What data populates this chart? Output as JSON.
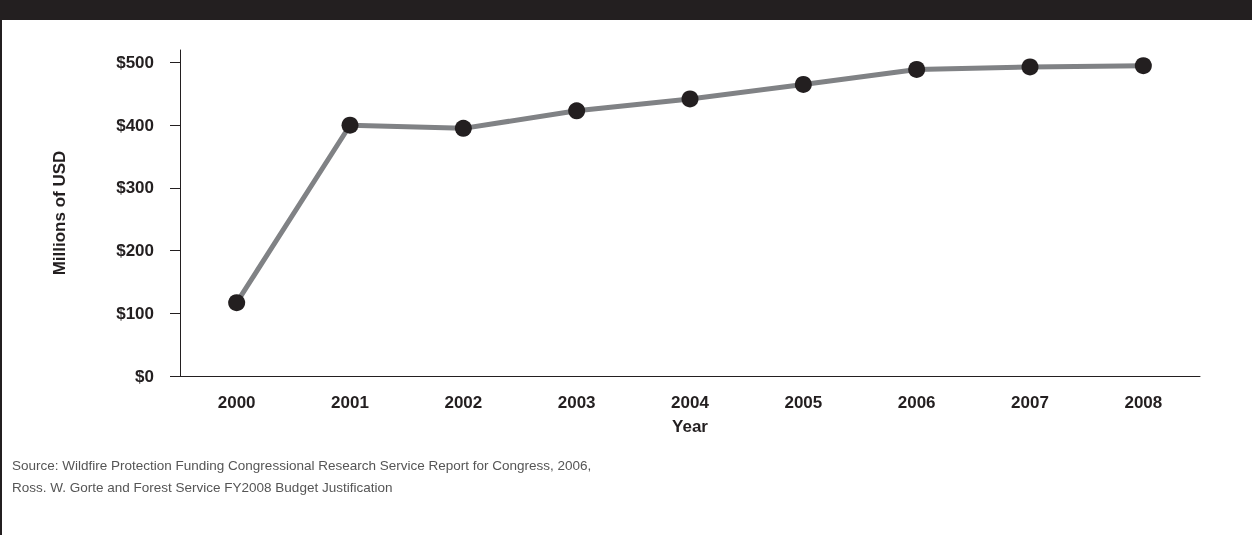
{
  "chart_data": {
    "type": "line",
    "xlabel": "Year",
    "ylabel": "Millions of USD",
    "categories": [
      "2000",
      "2001",
      "2002",
      "2003",
      "2004",
      "2005",
      "2006",
      "2007",
      "2008"
    ],
    "series": [
      {
        "color": "#808285",
        "values": [
          117,
          400,
          395,
          423,
          442,
          465,
          489,
          493,
          495
        ]
      }
    ],
    "ylim": [
      0,
      520
    ],
    "yticks": [
      {
        "value": 0,
        "label": "$0"
      },
      {
        "value": 100,
        "label": "$100"
      },
      {
        "value": 200,
        "label": "$200"
      },
      {
        "value": 300,
        "label": "$300"
      },
      {
        "value": 400,
        "label": "$400"
      },
      {
        "value": 500,
        "label": "$500"
      }
    ],
    "marker": "circle",
    "line_style": "solid",
    "grid": false,
    "annotations": [
      "Source: Wildfire Protection Funding Congressional Research Service Report for Congress, 2006,\nRoss. W. Gorte and Forest Service FY2008 Budget Justification"
    ]
  }
}
